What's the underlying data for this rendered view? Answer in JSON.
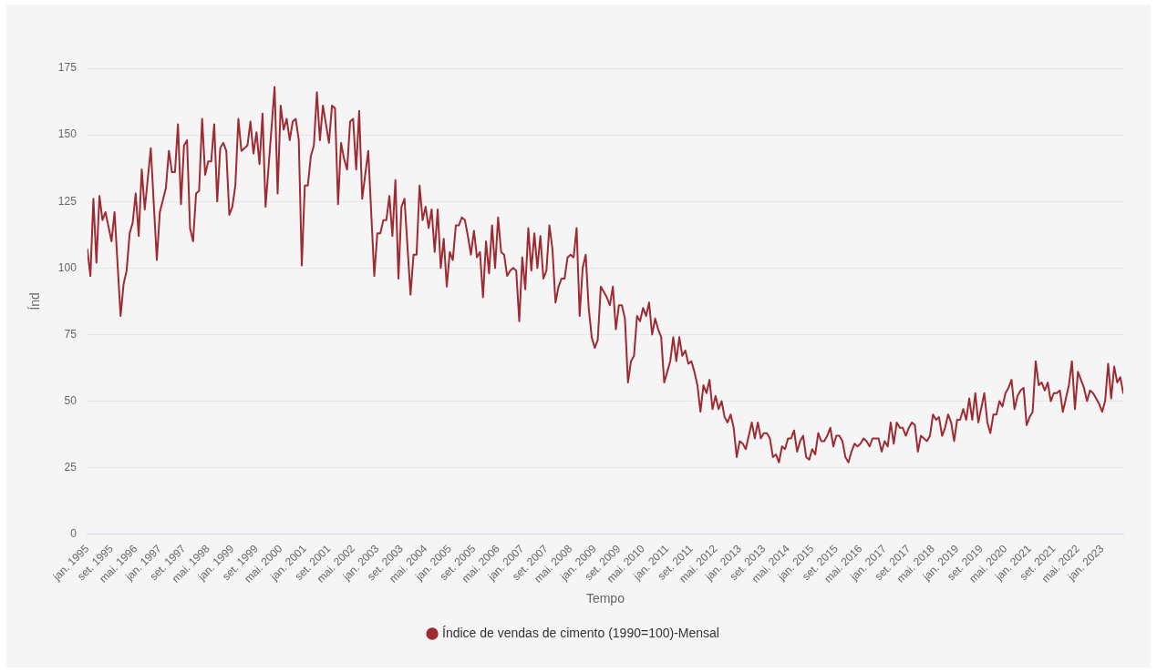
{
  "chart_data": {
    "type": "line",
    "xlabel": "Tempo",
    "ylabel": "Índ",
    "legend": "bottom",
    "grid": "y",
    "line_style": "solid",
    "xlim": [
      "1995-01",
      "2023-08"
    ],
    "ylim": [
      0,
      175
    ],
    "yticks": [
      0,
      25,
      50,
      75,
      100,
      125,
      150,
      175
    ],
    "xticks": [
      {
        "value": "1995-01",
        "label": "jan. 1995"
      },
      {
        "value": "1995-09",
        "label": "set. 1995"
      },
      {
        "value": "1996-05",
        "label": "mai. 1996"
      },
      {
        "value": "1997-01",
        "label": "jan. 1997"
      },
      {
        "value": "1997-09",
        "label": "set. 1997"
      },
      {
        "value": "1998-05",
        "label": "mai. 1998"
      },
      {
        "value": "1999-01",
        "label": "jan. 1999"
      },
      {
        "value": "1999-09",
        "label": "set. 1999"
      },
      {
        "value": "2000-05",
        "label": "mai. 2000"
      },
      {
        "value": "2001-01",
        "label": "jan. 2001"
      },
      {
        "value": "2001-09",
        "label": "set. 2001"
      },
      {
        "value": "2002-05",
        "label": "mai. 2002"
      },
      {
        "value": "2003-01",
        "label": "jan. 2003"
      },
      {
        "value": "2003-09",
        "label": "set. 2003"
      },
      {
        "value": "2004-05",
        "label": "mai. 2004"
      },
      {
        "value": "2005-01",
        "label": "jan. 2005"
      },
      {
        "value": "2005-09",
        "label": "set. 2005"
      },
      {
        "value": "2006-05",
        "label": "mai. 2006"
      },
      {
        "value": "2007-01",
        "label": "jan. 2007"
      },
      {
        "value": "2007-09",
        "label": "set. 2007"
      },
      {
        "value": "2008-05",
        "label": "mai. 2008"
      },
      {
        "value": "2009-01",
        "label": "jan. 2009"
      },
      {
        "value": "2009-09",
        "label": "set. 2009"
      },
      {
        "value": "2010-05",
        "label": "mai. 2010"
      },
      {
        "value": "2011-01",
        "label": "jan. 2011"
      },
      {
        "value": "2011-09",
        "label": "set. 2011"
      },
      {
        "value": "2012-05",
        "label": "mai. 2012"
      },
      {
        "value": "2013-01",
        "label": "jan. 2013"
      },
      {
        "value": "2013-09",
        "label": "set. 2013"
      },
      {
        "value": "2014-05",
        "label": "mai. 2014"
      },
      {
        "value": "2015-01",
        "label": "jan. 2015"
      },
      {
        "value": "2015-09",
        "label": "set. 2015"
      },
      {
        "value": "2016-05",
        "label": "mai. 2016"
      },
      {
        "value": "2017-01",
        "label": "jan. 2017"
      },
      {
        "value": "2017-09",
        "label": "set. 2017"
      },
      {
        "value": "2018-05",
        "label": "mai. 2018"
      },
      {
        "value": "2019-01",
        "label": "jan. 2019"
      },
      {
        "value": "2019-09",
        "label": "set. 2019"
      },
      {
        "value": "2020-05",
        "label": "mai. 2020"
      },
      {
        "value": "2021-01",
        "label": "jan. 2021"
      },
      {
        "value": "2021-09",
        "label": "set. 2021"
      },
      {
        "value": "2022-05",
        "label": "mai. 2022"
      },
      {
        "value": "2023-01",
        "label": "jan. 2023"
      }
    ],
    "series": [
      {
        "name": "Índice de vendas de cimento (1990=100)-Mensal",
        "color": "#9e2a32",
        "x": [
          "1995-01",
          "1995-02",
          "1995-03",
          "1995-04",
          "1995-05",
          "1995-06",
          "1995-07",
          "1995-09",
          "1995-10",
          "1995-12",
          "1996-01",
          "1996-02",
          "1996-03",
          "1996-04",
          "1996-05",
          "1996-06",
          "1996-07",
          "1996-08",
          "1996-10",
          "1996-12",
          "1997-01",
          "1997-03",
          "1997-04",
          "1997-05",
          "1997-06",
          "1997-07",
          "1997-08",
          "1997-09",
          "1997-10",
          "1997-11",
          "1997-12",
          "1998-01",
          "1998-02",
          "1998-03",
          "1998-04",
          "1998-05",
          "1998-06",
          "1998-07",
          "1998-08",
          "1998-09",
          "1998-10",
          "1998-11",
          "1998-12",
          "1999-01",
          "1999-02",
          "1999-03",
          "1999-04",
          "1999-06",
          "1999-07",
          "1999-08",
          "1999-09",
          "1999-10",
          "1999-11",
          "1999-12",
          "2000-03",
          "2000-04",
          "2000-05",
          "2000-06",
          "2000-07",
          "2000-08",
          "2000-09",
          "2000-10",
          "2000-11",
          "2000-12",
          "2001-01",
          "2001-02",
          "2001-03",
          "2001-04",
          "2001-05",
          "2001-06",
          "2001-07",
          "2001-08",
          "2001-09",
          "2001-10",
          "2001-11",
          "2001-12",
          "2002-01",
          "2002-02",
          "2002-03",
          "2002-04",
          "2002-05",
          "2002-06",
          "2002-07",
          "2002-08",
          "2002-10",
          "2002-12",
          "2003-01",
          "2003-02",
          "2003-03",
          "2003-04",
          "2003-05",
          "2003-06",
          "2003-07",
          "2003-08",
          "2003-09",
          "2003-10",
          "2003-12",
          "2004-01",
          "2004-02",
          "2004-03",
          "2004-04",
          "2004-05",
          "2004-06",
          "2004-07",
          "2004-08",
          "2004-09",
          "2004-10",
          "2004-11",
          "2004-12",
          "2005-01",
          "2005-02",
          "2005-03",
          "2005-04",
          "2005-05",
          "2005-06",
          "2005-07",
          "2005-08",
          "2005-09",
          "2005-10",
          "2005-11",
          "2005-12",
          "2006-01",
          "2006-02",
          "2006-03",
          "2006-04",
          "2006-05",
          "2006-06",
          "2006-07",
          "2006-08",
          "2006-09",
          "2006-10",
          "2006-11",
          "2006-12",
          "2007-01",
          "2007-02",
          "2007-03",
          "2007-04",
          "2007-05",
          "2007-06",
          "2007-07",
          "2007-08",
          "2007-09",
          "2007-10",
          "2007-11",
          "2007-12",
          "2008-01",
          "2008-02",
          "2008-03",
          "2008-04",
          "2008-05",
          "2008-06",
          "2008-07",
          "2008-08",
          "2008-09",
          "2008-10",
          "2008-11",
          "2008-12",
          "2009-01",
          "2009-02",
          "2009-03",
          "2009-05",
          "2009-06",
          "2009-07",
          "2009-08",
          "2009-09",
          "2009-10",
          "2009-11",
          "2009-12",
          "2010-01",
          "2010-02",
          "2010-03",
          "2010-04",
          "2010-05",
          "2010-06",
          "2010-07",
          "2010-08",
          "2010-09",
          "2010-10",
          "2010-11",
          "2010-12",
          "2011-01",
          "2011-02",
          "2011-03",
          "2011-04",
          "2011-05",
          "2011-06",
          "2011-07",
          "2011-08",
          "2011-09",
          "2011-10",
          "2011-11",
          "2011-12",
          "2012-01",
          "2012-02",
          "2012-03",
          "2012-04",
          "2012-05",
          "2012-06",
          "2012-07",
          "2012-08",
          "2012-09",
          "2012-10",
          "2012-11",
          "2012-12",
          "2013-01",
          "2013-02",
          "2013-03",
          "2013-04",
          "2013-05",
          "2013-06",
          "2013-07",
          "2013-08",
          "2013-09",
          "2013-10",
          "2013-11",
          "2013-12",
          "2014-01",
          "2014-02",
          "2014-03",
          "2014-04",
          "2014-05",
          "2014-06",
          "2014-07",
          "2014-08",
          "2014-09",
          "2014-10",
          "2014-11",
          "2014-12",
          "2015-01",
          "2015-02",
          "2015-03",
          "2015-04",
          "2015-05",
          "2015-06",
          "2015-07",
          "2015-08",
          "2015-09",
          "2015-10",
          "2015-11",
          "2015-12",
          "2016-01",
          "2016-02",
          "2016-03",
          "2016-04",
          "2016-05",
          "2016-06",
          "2016-07",
          "2016-08",
          "2016-09",
          "2016-10",
          "2016-11",
          "2016-12",
          "2017-01",
          "2017-02",
          "2017-03",
          "2017-04",
          "2017-05",
          "2017-06",
          "2017-07",
          "2017-08",
          "2017-09",
          "2017-10",
          "2017-11",
          "2017-12",
          "2018-01",
          "2018-02",
          "2018-03",
          "2018-04",
          "2018-05",
          "2018-06",
          "2018-07",
          "2018-08",
          "2018-09",
          "2018-10",
          "2018-11",
          "2018-12",
          "2019-01",
          "2019-02",
          "2019-03",
          "2019-04",
          "2019-05",
          "2019-06",
          "2019-07",
          "2019-08",
          "2019-10",
          "2019-11",
          "2019-12",
          "2020-01",
          "2020-02",
          "2020-03",
          "2020-04",
          "2020-05",
          "2020-06",
          "2020-07",
          "2020-08",
          "2020-09",
          "2020-10",
          "2020-11",
          "2020-12",
          "2021-01",
          "2021-02",
          "2021-03",
          "2021-04",
          "2021-05",
          "2021-06",
          "2021-07",
          "2021-08",
          "2021-09",
          "2021-10",
          "2021-11",
          "2021-12",
          "2022-02",
          "2022-03",
          "2022-04",
          "2022-05",
          "2022-07",
          "2022-08",
          "2022-09",
          "2022-10",
          "2022-11",
          "2022-12",
          "2023-01",
          "2023-02",
          "2023-03",
          "2023-04",
          "2023-05",
          "2023-06",
          "2023-07",
          "2023-08"
        ],
        "values": [
          107,
          97,
          126,
          102,
          127,
          118,
          121,
          110,
          121,
          82,
          94,
          99,
          113,
          117,
          128,
          112,
          137,
          122,
          145,
          103,
          121,
          130,
          144,
          136,
          136,
          154,
          124,
          146,
          148,
          115,
          110,
          128,
          129,
          156,
          135,
          140,
          140,
          154,
          125,
          145,
          147,
          144,
          120,
          123,
          131,
          156,
          144,
          146,
          155,
          143,
          151,
          139,
          158,
          123,
          168,
          128,
          161,
          152,
          156,
          148,
          155,
          156,
          148,
          101,
          131,
          131,
          142,
          146,
          166,
          148,
          161,
          154,
          147,
          161,
          160,
          124,
          147,
          141,
          137,
          155,
          156,
          137,
          159,
          126,
          144,
          97,
          113,
          113,
          118,
          118,
          127,
          112,
          133,
          96,
          123,
          126,
          90,
          105,
          105,
          131,
          118,
          123,
          115,
          122,
          106,
          122,
          100,
          111,
          93,
          106,
          103,
          116,
          116,
          119,
          118,
          112,
          105,
          114,
          104,
          106,
          89,
          110,
          98,
          116,
          100,
          119,
          106,
          105,
          97,
          99,
          100,
          99,
          80,
          104,
          92,
          115,
          99,
          113,
          100,
          112,
          96,
          99,
          116,
          107,
          87,
          93,
          96,
          96,
          104,
          105,
          104,
          115,
          82,
          100,
          105,
          85,
          74,
          70,
          73,
          93,
          89,
          86,
          93,
          77,
          86,
          86,
          81,
          57,
          65,
          67,
          82,
          80,
          85,
          82,
          87,
          75,
          81,
          77,
          74,
          57,
          61,
          65,
          74,
          65,
          74,
          67,
          69,
          64,
          65,
          61,
          56,
          46,
          56,
          53,
          58,
          47,
          52,
          47,
          50,
          44,
          42,
          45,
          40,
          29,
          35,
          34,
          32,
          37,
          42,
          36,
          42,
          36,
          38,
          38,
          36,
          29,
          30,
          27,
          33,
          32,
          36,
          36,
          39,
          31,
          35,
          37,
          29,
          28,
          32,
          30,
          38,
          35,
          35,
          37,
          40,
          33,
          37,
          37,
          35,
          29,
          27,
          31,
          34,
          33,
          34,
          36,
          35,
          33,
          36,
          36,
          36,
          31,
          35,
          33,
          42,
          34,
          42,
          40,
          40,
          37,
          40,
          42,
          41,
          31,
          37,
          36,
          35,
          37,
          45,
          43,
          44,
          37,
          40,
          45,
          42,
          35,
          43,
          43,
          47,
          43,
          51,
          43,
          53,
          42,
          53,
          42,
          38,
          45,
          45,
          50,
          48,
          53,
          55,
          58,
          47,
          52,
          54,
          55,
          41,
          44,
          46,
          65,
          56,
          57,
          54,
          57,
          50,
          53,
          53,
          54,
          46,
          56,
          65,
          47,
          61,
          55,
          50,
          54,
          53,
          51,
          49,
          46,
          50,
          64,
          51,
          63,
          57,
          59,
          53
        ]
      }
    ]
  }
}
